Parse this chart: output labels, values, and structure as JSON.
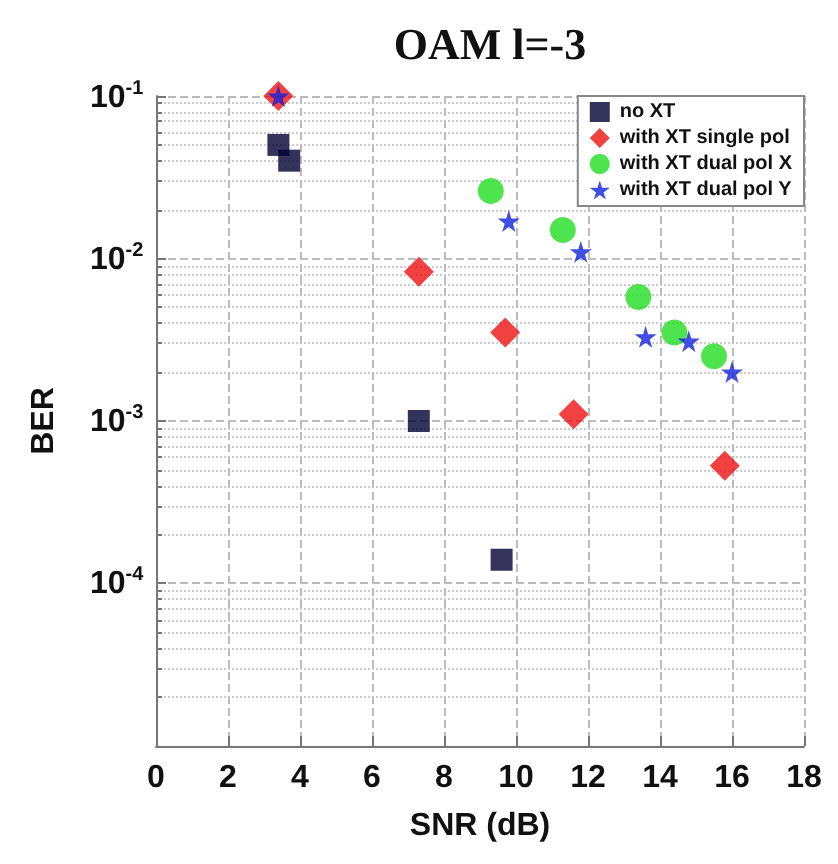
{
  "chart_data": {
    "type": "scatter",
    "title": "OAM l=-3",
    "xlabel": "SNR (dB)",
    "ylabel": "BER",
    "log": "y",
    "grid": true,
    "legend": "top right",
    "xlim": [
      0,
      18
    ],
    "xticks": [
      0,
      2,
      4,
      6,
      8,
      10,
      12,
      14,
      16,
      18
    ],
    "ylim": [
      1e-05,
      0.1
    ],
    "yticks": [
      {
        "value": 1e-05,
        "label": null
      },
      {
        "value": 0.0001,
        "label": "10$^{-4}$"
      },
      {
        "value": 0.001,
        "label": "10$^{-3}$"
      },
      {
        "value": 0.01,
        "label": "10$^{-2}$"
      },
      {
        "value": 0.1,
        "label": "10$^{-1}$"
      }
    ],
    "series": [
      {
        "name": "no XT",
        "color": "#000033",
        "marker": "square",
        "x": [
          3.4,
          3.7,
          7.3,
          9.6
        ],
        "values": [
          0.05,
          0.04,
          0.001,
          0.00014
        ]
      },
      {
        "name": "with XT single pol",
        "color": "#ee1111",
        "marker": "diamond",
        "x": [
          3.4,
          7.3,
          9.7,
          11.6,
          15.8
        ],
        "values": [
          0.1,
          0.0083,
          0.0035,
          0.0011,
          0.00053
        ]
      },
      {
        "name": "with XT dual pol X",
        "color": "#22dd22",
        "marker": "circle",
        "x": [
          9.3,
          11.3,
          13.4,
          14.4,
          15.5
        ],
        "values": [
          0.026,
          0.015,
          0.0058,
          0.0035,
          0.0025
        ]
      },
      {
        "name": "with XT dual pol Y",
        "color": "#1122dd",
        "marker": "star",
        "x": [
          3.4,
          9.8,
          11.8,
          13.6,
          14.8,
          16.0
        ],
        "values": [
          0.1,
          0.017,
          0.011,
          0.0033,
          0.0031,
          0.002
        ]
      }
    ]
  }
}
